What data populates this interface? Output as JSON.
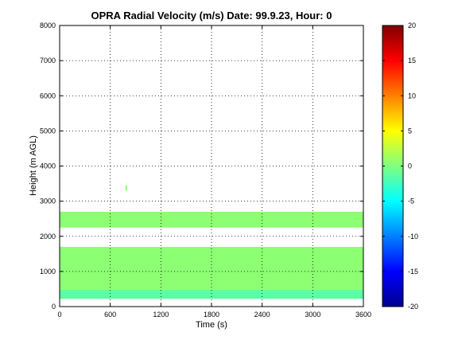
{
  "chart_data": {
    "type": "heatmap",
    "title": "OPRA Radial Velocity (m/s)  Date: 99.9.23, Hour: 0",
    "xlabel": "Time (s)",
    "ylabel": "Height (m AGL)",
    "xlim": [
      0,
      3600
    ],
    "ylim": [
      0,
      8000
    ],
    "x_ticks": [
      "0",
      "600",
      "1200",
      "1800",
      "2400",
      "3000",
      "3600"
    ],
    "y_ticks": [
      "0",
      "1000",
      "2000",
      "3000",
      "4000",
      "5000",
      "6000",
      "7000",
      "8000"
    ],
    "grid": true,
    "colormap": "jet",
    "colorbar": {
      "range": [
        -20,
        20
      ],
      "ticks": [
        "20",
        "15",
        "10",
        "5",
        "0",
        "-5",
        "-10",
        "-15",
        "-20"
      ]
    },
    "colors": {
      "dominant": "#a3f59b",
      "lower_band": "#8ff4b8"
    },
    "data_regions": [
      {
        "x": [
          0,
          3600
        ],
        "y": [
          220,
          480
        ],
        "value": -1.5,
        "description": "lowest gate band, mixed velocities"
      },
      {
        "x": [
          0,
          3600
        ],
        "y": [
          480,
          1700
        ],
        "value": 0.5
      },
      {
        "x": [
          0,
          3600
        ],
        "y": [
          2250,
          2700
        ],
        "value": 0.5
      },
      {
        "x": [
          780,
          800
        ],
        "y": [
          3300,
          3450
        ],
        "value": 0.5
      }
    ]
  }
}
